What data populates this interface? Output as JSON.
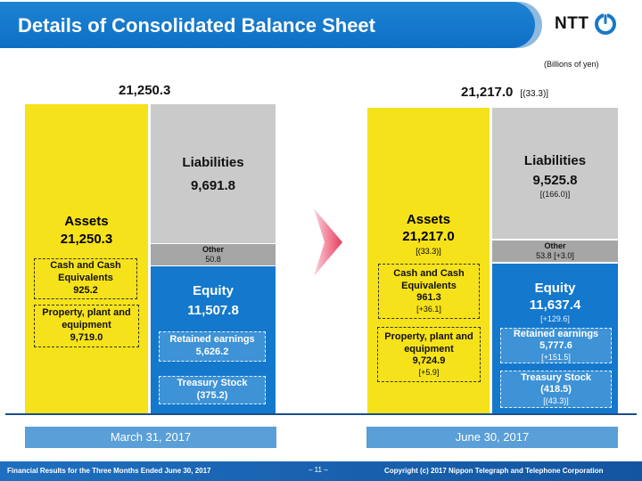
{
  "header": {
    "title": "Details of Consolidated Balance Sheet",
    "logo_text": "NTT"
  },
  "units": "(Billions of yen)",
  "left": {
    "total": "21,250.3",
    "assets": {
      "label": "Assets",
      "value": "21,250.3"
    },
    "cash": {
      "label": "Cash and Cash Equivalents",
      "value": "925.2"
    },
    "ppe": {
      "label": "Property, plant and equipment",
      "value": "9,719.0"
    },
    "liabilities": {
      "label": "Liabilities",
      "value": "9,691.8"
    },
    "other": {
      "label": "Other",
      "value": "50.8"
    },
    "equity": {
      "label": "Equity",
      "value": "11,507.8"
    },
    "retained": {
      "label": "Retained earnings",
      "value": "5,626.2"
    },
    "treasury": {
      "label": "Treasury Stock",
      "value": "(375.2)"
    },
    "date": "March 31, 2017"
  },
  "right": {
    "total": "21,217.0",
    "total_change": "[(33.3)]",
    "assets": {
      "label": "Assets",
      "value": "21,217.0",
      "change": "[(33.3)]"
    },
    "cash": {
      "label": "Cash and Cash Equivalents",
      "value": "961.3",
      "change": "[+36.1]"
    },
    "ppe": {
      "label": "Property, plant and equipment",
      "value": "9,724.9",
      "change": "[+5.9]"
    },
    "liabilities": {
      "label": "Liabilities",
      "value": "9,525.8",
      "change": "[(166.0)]"
    },
    "other": {
      "label": "Other",
      "value": "53.8 [+3.0]"
    },
    "equity": {
      "label": "Equity",
      "value": "11,637.4",
      "change": "[+129.6]"
    },
    "retained": {
      "label": "Retained earnings",
      "value": "5,777.6",
      "change": "[+151.5]"
    },
    "treasury": {
      "label": "Treasury Stock",
      "value": "(418.5)",
      "change": "[(43.3)]"
    },
    "date": "June 30, 2017"
  },
  "footer": {
    "left": "Financial Results for the Three Months Ended June 30, 2017",
    "page": "– 11 –",
    "right": "Copyright (c) 2017 Nippon Telegraph and Telephone Corporation"
  },
  "colors": {
    "assets": "#f6e21a",
    "liabilities": "#cacaca",
    "other": "#a6a6a6",
    "equity": "#1478cc",
    "brand": "#0d6fc4"
  }
}
